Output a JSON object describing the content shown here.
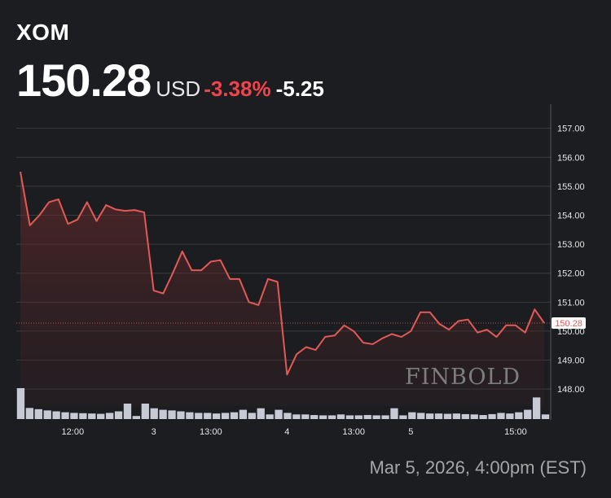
{
  "header": {
    "ticker": "XOM",
    "price": "150.28",
    "currency": "USD",
    "change_pct": "-3.38%",
    "change_abs": "-5.25"
  },
  "colors": {
    "background": "#1b1d21",
    "line": "#e35a55",
    "negative": "#f0434b",
    "grid": "#3a3c41",
    "volume": "#c7c9d4",
    "price_tag_bg": "#ffffff",
    "price_tag_text": "#e35a55"
  },
  "footer": {
    "timestamp": "Mar 5, 2026, 4:00pm (EST)"
  },
  "watermark": {
    "text": "FINBOLD"
  },
  "chart_data": {
    "type": "line",
    "y_ticks": [
      "148.00",
      "149.00",
      "150.00",
      "151.00",
      "152.00",
      "153.00",
      "154.00",
      "155.00",
      "156.00",
      "157.00"
    ],
    "ylim": [
      147.4,
      157.3
    ],
    "x_ticks": [
      "12:00",
      "3",
      "13:00",
      "4",
      "13:00",
      "5",
      "15:00"
    ],
    "current_price_label": "150.28",
    "grid": "horizontal",
    "prices": [
      155.5,
      153.65,
      154.0,
      154.45,
      154.55,
      153.7,
      153.85,
      154.45,
      153.8,
      154.35,
      154.2,
      154.15,
      154.18,
      154.1,
      151.4,
      151.3,
      152.0,
      152.75,
      152.1,
      152.1,
      152.4,
      152.45,
      151.8,
      151.8,
      151.0,
      150.9,
      151.8,
      151.7,
      148.5,
      149.2,
      149.45,
      149.35,
      149.8,
      149.85,
      150.2,
      150.0,
      149.6,
      149.55,
      149.75,
      149.9,
      149.8,
      150.0,
      150.65,
      150.65,
      150.25,
      150.05,
      150.35,
      150.4,
      149.95,
      150.05,
      149.8,
      150.2,
      150.2,
      149.95,
      150.75,
      150.28
    ],
    "volume": [
      1.0,
      0.36,
      0.32,
      0.28,
      0.25,
      0.22,
      0.2,
      0.19,
      0.18,
      0.17,
      0.2,
      0.25,
      0.5,
      0.1,
      0.5,
      0.35,
      0.3,
      0.28,
      0.25,
      0.22,
      0.2,
      0.2,
      0.18,
      0.2,
      0.22,
      0.3,
      0.2,
      0.35,
      0.15,
      0.3,
      0.2,
      0.15,
      0.15,
      0.13,
      0.12,
      0.12,
      0.15,
      0.12,
      0.12,
      0.13,
      0.12,
      0.12,
      0.35,
      0.12,
      0.22,
      0.2,
      0.18,
      0.18,
      0.17,
      0.18,
      0.16,
      0.15,
      0.13,
      0.16,
      0.2,
      0.18,
      0.22,
      0.3,
      0.7,
      0.15
    ],
    "price_indices": [
      0,
      1,
      2,
      3,
      4,
      5,
      6,
      7,
      8,
      9,
      10,
      11,
      12,
      13,
      14,
      15,
      16,
      17,
      18,
      19,
      20,
      21,
      22,
      23,
      24,
      25,
      26,
      27,
      28,
      29,
      30,
      31,
      32,
      33,
      34,
      35,
      36,
      37,
      38,
      39,
      40,
      41,
      42,
      43,
      44,
      45,
      46,
      47,
      48,
      49,
      50,
      51,
      52,
      53,
      54,
      55
    ],
    "x_tick_indices": [
      5.5,
      14,
      20,
      28,
      35,
      41,
      52
    ]
  }
}
